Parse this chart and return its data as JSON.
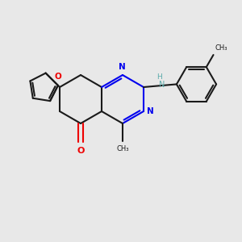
{
  "bg": "#e8e8e8",
  "lc": "#1a1a1a",
  "nc": "#0000ee",
  "oc": "#ee0000",
  "nhc": "#5aaaaa",
  "lw": 1.5,
  "figsize": [
    3.0,
    3.0
  ],
  "dpi": 100,
  "xlim": [
    0,
    10
  ],
  "ylim": [
    0,
    10
  ]
}
